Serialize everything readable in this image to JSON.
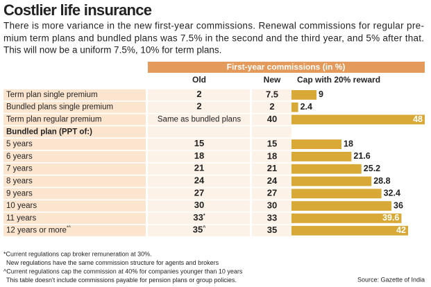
{
  "title": "Costlier life insurance",
  "subtitle": [
    "There is more variance in the new first-year commissions. Renewal commissions for regular pre-",
    "mium term plans and bundled plans was 7.5% in the second and the third year, and 5% after that.",
    "This will now be a uniform 7.5%, 10% for term plans."
  ],
  "table": {
    "group_header": "First-year commissions (in %)",
    "columns": [
      "Old",
      "New",
      "Cap with 20% reward"
    ],
    "rows": [
      {
        "label": "Term plan single premium",
        "old": 2,
        "new": 7.5,
        "cap": 9
      },
      {
        "label": "Bundled plans single premium",
        "old": 2,
        "new": 2,
        "cap": 2.4
      },
      {
        "label": "Term plan regular premium",
        "old": "Same as bundled plans",
        "new": 40,
        "cap": 48
      },
      {
        "label": "Bundled plan (PPT of:)"
      },
      {
        "label": "5 years",
        "old": 15,
        "new": 15,
        "cap": 18
      },
      {
        "label": "6 years",
        "old": 18,
        "new": 18,
        "cap": 21.6
      },
      {
        "label": "7 years",
        "old": 21,
        "new": 21,
        "cap": 25.2
      },
      {
        "label": "8 years",
        "old": 24,
        "new": 24,
        "cap": 28.8
      },
      {
        "label": "9 years",
        "old": 27,
        "new": 27,
        "cap": 32.4
      },
      {
        "label": "10 years",
        "old": 30,
        "new": 30,
        "cap": 36
      },
      {
        "label": "11 years",
        "old": 33,
        "old_note": "*",
        "new": 33,
        "cap": 39.6
      },
      {
        "label": "12 years or more",
        "label_note": "*^",
        "old": 35,
        "old_note": "^",
        "new": 35,
        "cap": 42
      }
    ]
  },
  "notes": [
    "*Current regulations cap broker remuneration at 30%.",
    "New regulations have the same commission structure for agents and brokers",
    "^Current regulations cap the commission at 40% for companies younger than 10 years",
    "This table doesn't include commissions payable for pension plans or group policies."
  ],
  "source": "Source: Gazette of India"
}
